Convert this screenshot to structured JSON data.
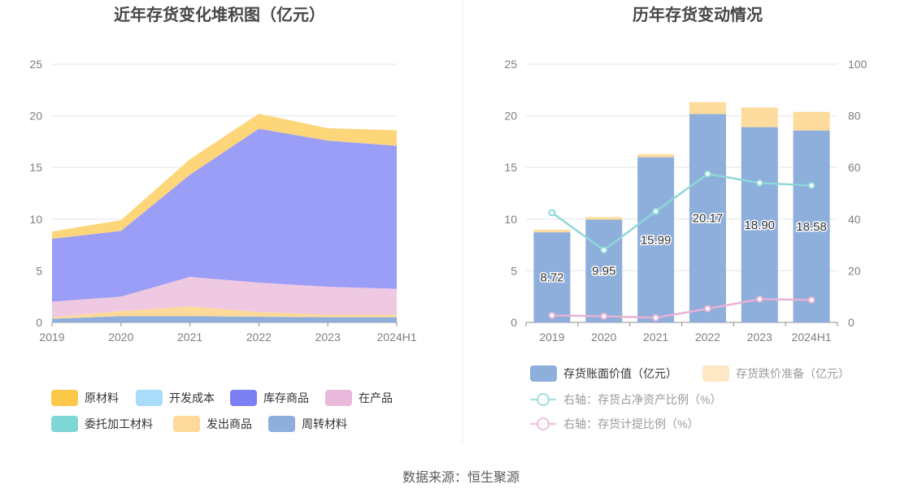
{
  "source": "数据来源：恒生聚源",
  "chart_data": [
    {
      "type": "area",
      "title": "近年存货变化堆积图（亿元）",
      "categories": [
        "2019",
        "2020",
        "2021",
        "2022",
        "2023",
        "2024H1"
      ],
      "y_ticks": [
        "0",
        "5",
        "10",
        "15",
        "20",
        "25"
      ],
      "ylim": [
        0,
        25
      ],
      "stacked": true,
      "legend_position": "bottom",
      "series": [
        {
          "name": "周转材料",
          "color": "#8eaedc",
          "values": [
            0.35,
            0.6,
            0.6,
            0.55,
            0.5,
            0.5
          ]
        },
        {
          "name": "发出商品",
          "color": "#fdd99a",
          "values": [
            0.15,
            0.5,
            0.95,
            0.45,
            0.25,
            0.25
          ]
        },
        {
          "name": "委托加工材料",
          "color": "#7fd6d6",
          "values": [
            0,
            0,
            0,
            0,
            0,
            0
          ]
        },
        {
          "name": "在产品",
          "color": "#efc8e2",
          "values": [
            1.5,
            1.4,
            2.85,
            2.85,
            2.7,
            2.5
          ]
        },
        {
          "name": "库存商品",
          "color": "#9a9ef6",
          "values": [
            6.1,
            6.35,
            9.9,
            14.9,
            14.15,
            13.85
          ]
        },
        {
          "name": "开发成本",
          "color": "#a8dcf8",
          "values": [
            0,
            0,
            0,
            0,
            0,
            0
          ]
        },
        {
          "name": "原材料",
          "color": "#fdd67a",
          "values": [
            0.7,
            1.05,
            1.5,
            1.45,
            1.2,
            1.5
          ]
        }
      ],
      "legend": [
        {
          "name": "原材料",
          "color": "#fbc849"
        },
        {
          "name": "开发成本",
          "color": "#a8dcf8"
        },
        {
          "name": "库存商品",
          "color": "#7b7ff2"
        },
        {
          "name": "在产品",
          "color": "#e9b8da"
        },
        {
          "name": "委托加工材料",
          "color": "#7fd6d6"
        },
        {
          "name": "发出商品",
          "color": "#fdd99a"
        },
        {
          "name": "周转材料",
          "color": "#8eaedc"
        }
      ]
    },
    {
      "type": "bar",
      "title": "历年存货变动情况",
      "categories": [
        "2019",
        "2020",
        "2021",
        "2022",
        "2023",
        "2024H1"
      ],
      "y_ticks": [
        "0",
        "5",
        "10",
        "15",
        "20",
        "25"
      ],
      "y2_ticks": [
        "0",
        "20",
        "40",
        "60",
        "80",
        "100"
      ],
      "ylim": [
        0,
        25
      ],
      "y2lim": [
        0,
        100
      ],
      "stacked": true,
      "legend_position": "bottom",
      "series": [
        {
          "name": "存货账面价值（亿元）",
          "color": "#8eaedc",
          "type": "bar",
          "values": [
            8.72,
            9.95,
            15.99,
            20.17,
            18.9,
            18.58
          ],
          "labels": [
            "8.72",
            "9.95",
            "15.99",
            "20.17",
            "18.90",
            "18.58"
          ]
        },
        {
          "name": "存货跌价准备（亿元）",
          "color": "#fddb9c",
          "type": "bar",
          "values": [
            0.25,
            0.25,
            0.3,
            1.15,
            1.9,
            1.8
          ]
        },
        {
          "name": "右轴：存货占净资产比例（%）",
          "color": "#8ed8d8",
          "type": "line",
          "axis": "right",
          "values": [
            42.5,
            28,
            43,
            57.5,
            54,
            53
          ]
        },
        {
          "name": "右轴：存货计提比例（%）",
          "color": "#e7b2d4",
          "type": "line",
          "axis": "right",
          "values": [
            2.7,
            2.4,
            1.8,
            5.3,
            9.0,
            8.7
          ]
        }
      ]
    }
  ]
}
